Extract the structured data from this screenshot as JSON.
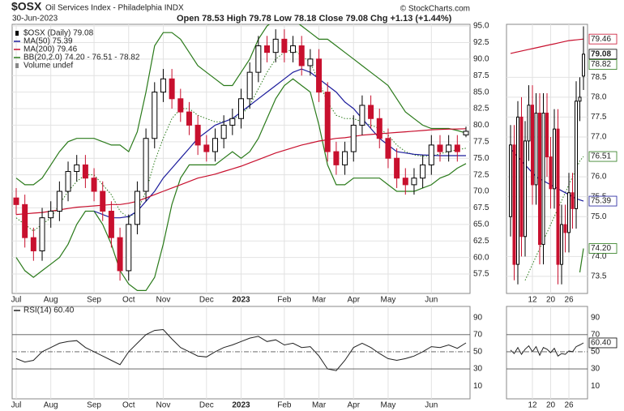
{
  "chart_data": [
    {
      "type": "candlestick",
      "title": "$OSX",
      "subtitle": "Oil Services Index - Philadelphia INDX",
      "date": "30-Jun-2023",
      "quote": "Open 78.53 High 79.78 Low 78.18 Close 79.08 Chg +1.13 (+1.44%)",
      "credit": "© StockCharts.com",
      "name": "$OSX (Daily) 79.08",
      "up_color": "#000000",
      "down_color": "#c8102e",
      "categories": [
        "Jul",
        null,
        null,
        null,
        "Aug",
        null,
        null,
        null,
        null,
        "Sep",
        null,
        null,
        null,
        "Oct",
        null,
        null,
        null,
        "Nov",
        null,
        null,
        null,
        null,
        "Dec",
        null,
        null,
        null,
        "2023",
        null,
        null,
        null,
        null,
        "Feb",
        null,
        null,
        null,
        "Mar",
        null,
        null,
        null,
        "Apr",
        null,
        null,
        null,
        "May",
        null,
        null,
        null,
        null,
        "Jun",
        null,
        null,
        null,
        null
      ],
      "open": [
        69,
        68,
        63,
        61,
        66,
        67,
        70,
        73,
        74,
        72,
        70,
        67,
        63,
        58,
        65,
        70,
        78,
        85,
        87,
        84,
        82,
        80,
        77,
        76,
        78,
        80,
        81,
        84,
        88,
        92,
        91,
        93,
        91,
        92,
        89,
        90,
        85,
        76,
        74,
        76,
        80,
        83,
        81,
        78,
        75,
        72,
        71,
        72,
        74,
        77,
        76,
        77,
        78.53
      ],
      "high": [
        70.5,
        69.5,
        64.5,
        67.5,
        68.5,
        71.5,
        74.5,
        75.5,
        75.5,
        73.5,
        71.5,
        68.5,
        64.5,
        66.5,
        71.5,
        79.5,
        86.5,
        88.5,
        88.5,
        85.5,
        83.5,
        81.5,
        78.5,
        79.5,
        81.5,
        82.5,
        85.5,
        89.5,
        93.5,
        93.5,
        94.5,
        94.5,
        93.5,
        93.5,
        91.5,
        91.5,
        86.5,
        77.5,
        77.5,
        81.5,
        84.5,
        84.5,
        82.5,
        79.5,
        76.5,
        73.5,
        73.5,
        75.5,
        78.5,
        78.5,
        78.5,
        78.5,
        79.78
      ],
      "low": [
        66.5,
        61.5,
        59.5,
        59.5,
        64.5,
        65.5,
        68.5,
        71.5,
        70.5,
        68.5,
        65.5,
        61.5,
        56.5,
        56.5,
        63.5,
        68.5,
        76.5,
        83.5,
        82.5,
        80.5,
        78.5,
        75.5,
        74.5,
        74.5,
        76.5,
        78.5,
        79.5,
        82.5,
        86.5,
        89.5,
        89.5,
        89.5,
        89.5,
        87.5,
        87.5,
        83.5,
        74.5,
        72.5,
        72.5,
        74.5,
        78.5,
        79.5,
        76.5,
        73.5,
        70.5,
        69.5,
        69.5,
        70.5,
        72.5,
        74.5,
        74.5,
        74.5,
        78.18
      ],
      "close": [
        68,
        63,
        61,
        66,
        67,
        70,
        73,
        74,
        72,
        70,
        67,
        63,
        58,
        65,
        70,
        78,
        85,
        87,
        84,
        82,
        80,
        77,
        76,
        78,
        80,
        81,
        84,
        88,
        92,
        91,
        93,
        91,
        92,
        89,
        90,
        85,
        76,
        74,
        76,
        80,
        83,
        81,
        78,
        75,
        72,
        71,
        72,
        74,
        77,
        76,
        77,
        76,
        79.08
      ],
      "ylim": [
        54.56,
        95.25
      ],
      "yticks": [
        57.5,
        {
          "value": 60,
          "label": "60.0"
        },
        62.5,
        {
          "value": 65,
          "label": "65.0"
        },
        67.5,
        {
          "value": 70,
          "label": "70.0"
        },
        72.5,
        {
          "value": 75,
          "label": "75.0"
        },
        77.5,
        {
          "value": 80,
          "label": "80.0"
        },
        82.5,
        {
          "value": 85,
          "label": "85.0"
        },
        87.5,
        {
          "value": 90,
          "label": "90.0"
        },
        92.5,
        {
          "value": 95,
          "label": "95.0"
        }
      ],
      "grid": true,
      "series": [
        {
          "name": "MA(50) 75.39",
          "color": "#1c1c9c",
          "values": [
            null,
            null,
            null,
            null,
            null,
            null,
            null,
            null,
            null,
            67,
            66.5,
            66,
            66,
            66.2,
            67,
            68.5,
            70,
            72,
            73.5,
            75,
            76.5,
            78,
            79,
            80,
            80.5,
            81,
            82,
            83,
            84,
            85,
            86,
            87,
            88,
            88.5,
            88,
            87,
            86,
            85,
            83.5,
            82.5,
            81,
            79.5,
            78,
            77,
            76,
            75.8,
            75.6,
            75.5,
            75.45,
            75.4,
            75.4,
            75.4,
            75.39
          ]
        },
        {
          "name": "MA(200) 79.46",
          "color": "#c8102e",
          "values": [
            66.5,
            66.6,
            66.7,
            66.8,
            67,
            67.2,
            67.4,
            67.6,
            67.7,
            67.8,
            67.9,
            68,
            68,
            68.2,
            68.5,
            69,
            69.5,
            70,
            70.5,
            71,
            71.5,
            72,
            72.3,
            72.6,
            73,
            73.4,
            73.8,
            74.3,
            74.8,
            75.3,
            75.8,
            76.2,
            76.6,
            77,
            77.3,
            77.6,
            77.8,
            78,
            78.1,
            78.3,
            78.5,
            78.6,
            78.7,
            78.8,
            78.9,
            79,
            79.1,
            79.2,
            79.3,
            79.35,
            79.4,
            79.43,
            79.46
          ]
        }
      ],
      "bands": {
        "name": "BB(20,2.0) 74.20 - 76.51 - 78.82",
        "color": "#2a7a1a",
        "upper": [
          72,
          71,
          71,
          72,
          74,
          76,
          77.5,
          78,
          78,
          78,
          77.5,
          77,
          77,
          76,
          79,
          85,
          92,
          94,
          94,
          93,
          91,
          89,
          88,
          87,
          86,
          86,
          88,
          90,
          93,
          95,
          96,
          96,
          96,
          95,
          94,
          93,
          93,
          92,
          91,
          90,
          89,
          88,
          87,
          86,
          84,
          82,
          81,
          80,
          79.5,
          79.5,
          79.5,
          79.2,
          78.82
        ],
        "middle": [
          66,
          65,
          64,
          65,
          66,
          68,
          70,
          71.5,
          72.5,
          72.5,
          71,
          69.5,
          67,
          66,
          67,
          70,
          74.5,
          78,
          81,
          82.5,
          82.5,
          81.5,
          81,
          80.5,
          80.5,
          81,
          81.5,
          83,
          85.5,
          88,
          90,
          91,
          91.5,
          90.5,
          89.5,
          86.5,
          83.5,
          81.5,
          81,
          81,
          80.5,
          80,
          79.5,
          78.5,
          77,
          76,
          75.5,
          75.3,
          75.3,
          75.7,
          76,
          76.3,
          76.51
        ],
        "lower": [
          60,
          58,
          57,
          58,
          59,
          60,
          62,
          65,
          67,
          67,
          65,
          62,
          58,
          56,
          55,
          55,
          57,
          62,
          68,
          72,
          74,
          74,
          74,
          74,
          75,
          76,
          75,
          76,
          78,
          81,
          84,
          86,
          87,
          86,
          85,
          80,
          74,
          71,
          71,
          72,
          72,
          72,
          72,
          71,
          70,
          70,
          70,
          70.5,
          71,
          72,
          72.5,
          73.5,
          74.2
        ]
      },
      "volume_note": "Volume undef",
      "rsi": {
        "name": "RSI(14) 60.40",
        "color": "#222222",
        "values": [
          42,
          38,
          40,
          50,
          55,
          60,
          62,
          63,
          55,
          50,
          45,
          40,
          35,
          50,
          60,
          70,
          75,
          76,
          65,
          55,
          50,
          45,
          44,
          50,
          55,
          58,
          62,
          66,
          68,
          62,
          64,
          58,
          60,
          55,
          56,
          45,
          30,
          28,
          40,
          55,
          60,
          55,
          48,
          42,
          40,
          42,
          45,
          50,
          56,
          55,
          58,
          54,
          60.4
        ],
        "ylim": [
          -5,
          103
        ],
        "yticks": [
          10,
          30,
          50,
          70,
          90
        ],
        "hlines": [
          30,
          70
        ],
        "midline": 50
      }
    },
    {
      "type": "candlestick",
      "up_color": "#000000",
      "down_color": "#c8102e",
      "categories": [
        null,
        null,
        null,
        null,
        null,
        null,
        "12",
        null,
        null,
        null,
        null,
        "20",
        null,
        null,
        null,
        null,
        "26",
        null,
        null,
        null,
        null
      ],
      "open": [
        75,
        76.8,
        73.8,
        77.5,
        74.5,
        76.9,
        77.8,
        75.8,
        77.6,
        74.3,
        77.6,
        76.5,
        75.7,
        77.2,
        73.8,
        74.8,
        74.6,
        75.6,
        75.2,
        77.9,
        78.53
      ],
      "high": [
        77.3,
        77.3,
        77.9,
        78.0,
        77.4,
        78.3,
        78.3,
        78.1,
        78.1,
        78.1,
        78.1,
        77.0,
        77.7,
        77.7,
        75.3,
        75.3,
        76.1,
        76.1,
        78.4,
        78.5,
        79.78
      ],
      "low": [
        74.5,
        73.4,
        73.3,
        74.0,
        74.0,
        76.4,
        75.3,
        75.3,
        73.8,
        73.8,
        76.0,
        75.2,
        75.2,
        73.3,
        73.3,
        74.1,
        74.1,
        74.7,
        74.7,
        77.4,
        78.18
      ],
      "close": [
        76.8,
        73.8,
        77.5,
        74.5,
        76.9,
        77.8,
        75.8,
        77.6,
        74.3,
        77.6,
        76.5,
        75.7,
        77.2,
        73.8,
        74.8,
        74.6,
        75.6,
        75.2,
        77.9,
        78.0,
        79.08
      ],
      "ylim": [
        73.07,
        79.83
      ],
      "yticks": [
        73.5,
        {
          "value": 74,
          "label": "74.0"
        },
        {
          "value": 75,
          "label": "75.0"
        },
        75.5,
        {
          "value": 76,
          "label": "76.0"
        },
        {
          "value": 77,
          "label": "77.0"
        },
        77.5,
        {
          "value": 78,
          "label": "78.0"
        },
        78.5
      ],
      "grid": true,
      "series": [
        {
          "color": "#1c1c9c",
          "values": [
            76.7,
            76.6,
            76.5,
            76.4,
            76.3,
            76.2,
            76.1,
            76.0,
            75.95,
            75.9,
            75.85,
            75.8,
            75.75,
            75.7,
            75.65,
            75.6,
            75.55,
            75.5,
            75.45,
            75.42,
            75.39
          ]
        },
        {
          "color": "#c8102e",
          "values": [
            79.1,
            79.12,
            79.14,
            79.16,
            79.18,
            79.2,
            79.22,
            79.24,
            79.26,
            79.28,
            79.3,
            79.32,
            79.34,
            79.36,
            79.38,
            79.4,
            79.42,
            79.43,
            79.44,
            79.45,
            79.46
          ]
        }
      ],
      "bands": {
        "color": "#2a7a1a",
        "middle": [
          null,
          null,
          null,
          null,
          73.4,
          73.6,
          73.8,
          74.0,
          74.2,
          74.4,
          74.6,
          74.8,
          75.0,
          75.2,
          75.4,
          75.6,
          75.8,
          76.0,
          76.2,
          76.4,
          76.51
        ],
        "lower": [
          null,
          null,
          null,
          null,
          null,
          null,
          null,
          null,
          null,
          null,
          null,
          null,
          null,
          null,
          null,
          null,
          null,
          null,
          null,
          73.6,
          74.2
        ]
      },
      "price_labels": [
        {
          "value": 79.46,
          "label": "79.46",
          "color": "#c8102e"
        },
        {
          "value": 79.08,
          "label": "79.08",
          "color": "#000000"
        },
        {
          "value": 78.82,
          "label": "78.82",
          "color": "#2a7a1a"
        },
        {
          "value": 76.51,
          "label": "76.51",
          "color": "#2a7a1a"
        },
        {
          "value": 75.39,
          "label": "75.39",
          "color": "#1c1c9c"
        },
        {
          "value": 74.2,
          "label": "74.20",
          "color": "#2a7a1a"
        }
      ],
      "rsi": {
        "color": "#222222",
        "values": [
          52,
          48,
          55,
          47,
          53,
          57,
          50,
          56,
          46,
          55,
          53,
          49,
          54,
          45,
          48,
          47,
          51,
          50,
          56,
          58,
          60.4
        ],
        "ylim": [
          -5,
          103
        ],
        "yticks": [
          10,
          30,
          50,
          70,
          90
        ],
        "hlines": [
          30,
          70
        ],
        "midline": 50,
        "last_label": {
          "value": 60.4,
          "label": "60.40",
          "color": "#000000"
        }
      }
    }
  ]
}
